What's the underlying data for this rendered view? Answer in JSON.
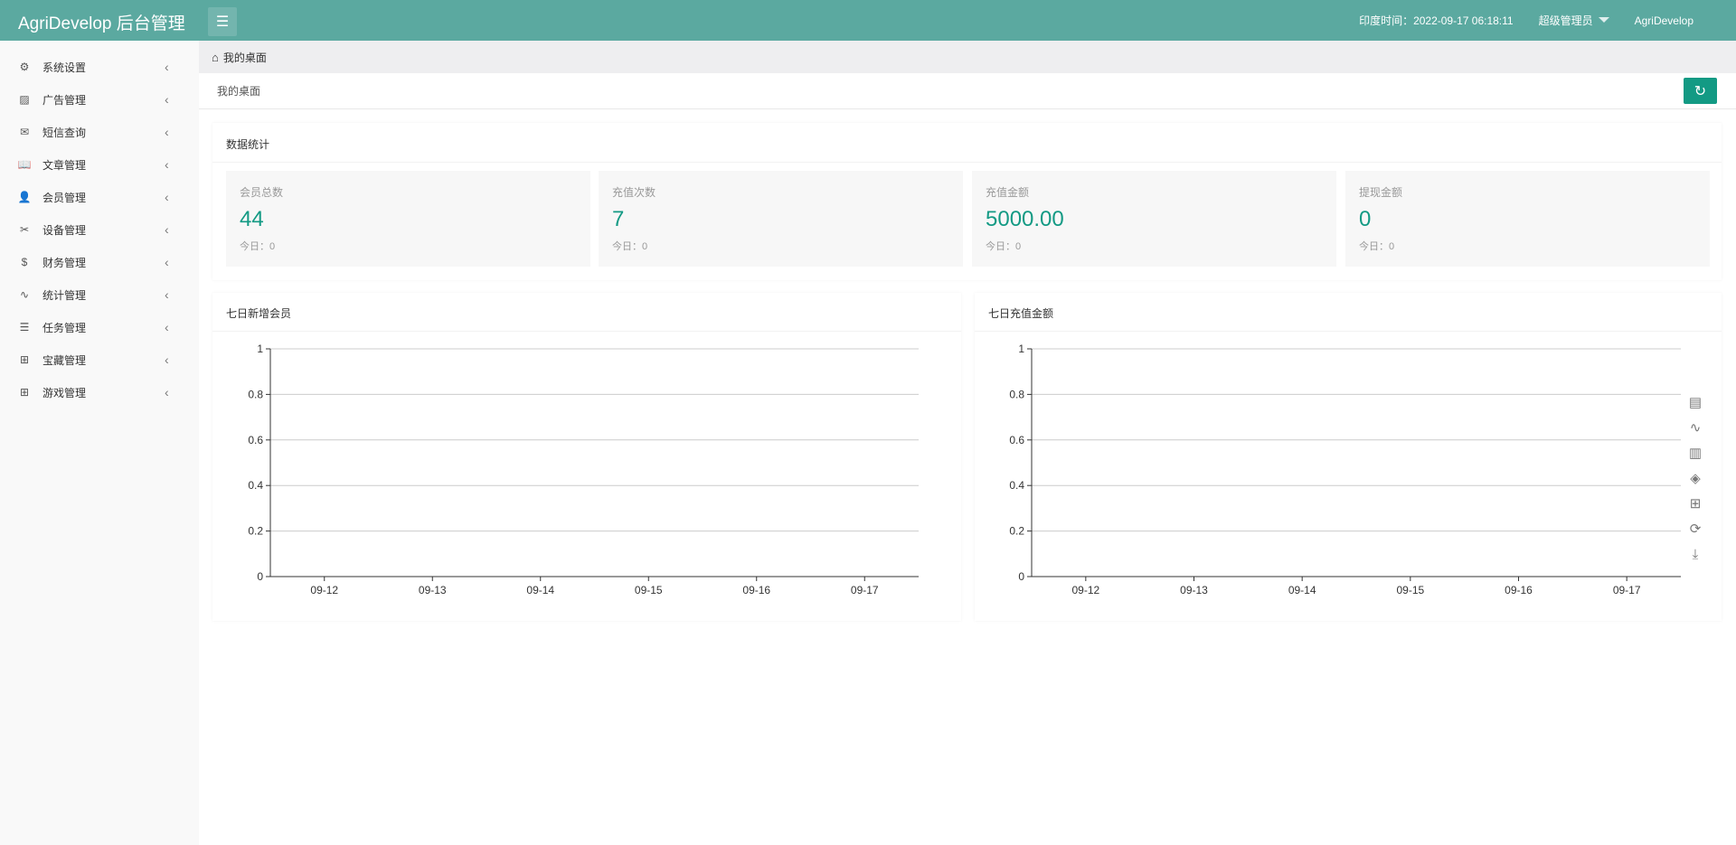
{
  "header": {
    "title": "AgriDevelop 后台管理",
    "time_label": "印度时间：2022-09-17 06:18:11",
    "role": "超级管理员",
    "user": "AgriDevelop"
  },
  "sidebar": {
    "items": [
      {
        "label": "系统设置",
        "icon": "gear-icon",
        "glyph": "⚙"
      },
      {
        "label": "广告管理",
        "icon": "image-icon",
        "glyph": "▨"
      },
      {
        "label": "短信查询",
        "icon": "mail-icon",
        "glyph": "✉"
      },
      {
        "label": "文章管理",
        "icon": "book-icon",
        "glyph": "📖"
      },
      {
        "label": "会员管理",
        "icon": "user-icon",
        "glyph": "👤"
      },
      {
        "label": "设备管理",
        "icon": "tools-icon",
        "glyph": "✂"
      },
      {
        "label": "财务管理",
        "icon": "dollar-icon",
        "glyph": "$"
      },
      {
        "label": "统计管理",
        "icon": "pulse-icon",
        "glyph": "∿"
      },
      {
        "label": "任务管理",
        "icon": "sliders-icon",
        "glyph": "☰"
      },
      {
        "label": "宝藏管理",
        "icon": "gift-icon",
        "glyph": "⊞"
      },
      {
        "label": "游戏管理",
        "icon": "gift-icon",
        "glyph": "⊞"
      }
    ]
  },
  "breadcrumb": {
    "home": "我的桌面"
  },
  "page": {
    "title": "我的桌面"
  },
  "stats": {
    "title": "数据统计",
    "items": [
      {
        "label": "会员总数",
        "value": "44",
        "today": "今日：0"
      },
      {
        "label": "充值次数",
        "value": "7",
        "today": "今日：0"
      },
      {
        "label": "充值金额",
        "value": "5000.00",
        "today": "今日：0"
      },
      {
        "label": "提现金额",
        "value": "0",
        "today": "今日：0"
      }
    ]
  },
  "colors": {
    "header": "#5ba9a0",
    "accent": "#139a84"
  },
  "chart_data": [
    {
      "type": "line",
      "title": "七日新增会员",
      "categories": [
        "09-12",
        "09-13",
        "09-14",
        "09-15",
        "09-16",
        "09-17"
      ],
      "yticks": [
        "0",
        "0.2",
        "0.4",
        "0.6",
        "0.8",
        "1"
      ],
      "ylim": [
        0,
        1
      ],
      "series": [],
      "grid": true
    },
    {
      "type": "line",
      "title": "七日充值金额",
      "categories": [
        "09-12",
        "09-13",
        "09-14",
        "09-15",
        "09-16",
        "09-17"
      ],
      "yticks": [
        "0",
        "0.2",
        "0.4",
        "0.6",
        "0.8",
        "1"
      ],
      "ylim": [
        0,
        1
      ],
      "series": [],
      "grid": true,
      "toolbox": [
        "data-view-icon",
        "line-chart-icon",
        "bar-chart-icon",
        "stack-icon",
        "tiled-icon",
        "restore-icon",
        "download-icon"
      ]
    }
  ]
}
